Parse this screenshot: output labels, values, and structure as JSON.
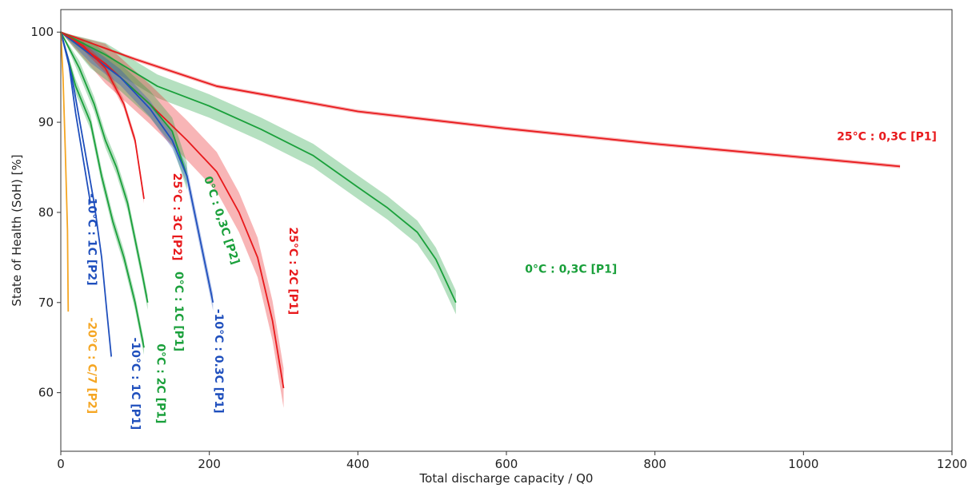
{
  "chart_data": {
    "type": "line",
    "title": "",
    "xlabel": "Total discharge capacity / Q0",
    "ylabel": "State of Health (SoH) [%]",
    "xlim": [
      0,
      1200
    ],
    "ylim": [
      53.5,
      102.5
    ],
    "xticks": [
      0,
      200,
      400,
      600,
      800,
      1000,
      1200
    ],
    "yticks": [
      60,
      70,
      80,
      90,
      100
    ],
    "grid": false,
    "legend": "none",
    "series": [
      {
        "name": "25°C : 0,3C [P1]",
        "color": "#e8191c",
        "x": [
          0,
          100,
          210,
          400,
          600,
          800,
          1000,
          1130
        ],
        "y": [
          100,
          97,
          94,
          91.2,
          89.3,
          87.6,
          86.1,
          85.1
        ],
        "band": 0.2
      },
      {
        "name": "0°C : 0,3C [P1]",
        "color": "#1aa03b",
        "x": [
          0,
          60,
          130,
          200,
          270,
          340,
          400,
          440,
          480,
          505,
          532
        ],
        "y": [
          100,
          97.5,
          94,
          91.8,
          89.2,
          86.3,
          82.8,
          80.5,
          77.8,
          74.8,
          70
        ],
        "band": 1.3
      },
      {
        "name": "25°C : 2C [P1]",
        "color": "#e8191c",
        "x": [
          0,
          60,
          120,
          170,
          210,
          240,
          265,
          285,
          300
        ],
        "y": [
          100,
          96.5,
          92,
          88,
          84.5,
          80,
          75,
          68,
          60.5
        ],
        "band": 2.2
      },
      {
        "name": "0°C : 0,3C [P2]",
        "color": "#1aa03b",
        "x": [
          0,
          40,
          80,
          120,
          150,
          170
        ],
        "y": [
          100,
          97.5,
          95,
          92,
          89,
          84
        ],
        "band": 1.5
      },
      {
        "name": "-10°C : 0.3C [P1]",
        "color": "#1f4fbd",
        "x": [
          0,
          40,
          80,
          120,
          150,
          170,
          185,
          205
        ],
        "y": [
          100,
          97.5,
          95,
          91.5,
          88,
          84,
          78,
          70
        ],
        "band": 0.9
      },
      {
        "name": "25°C : 3C [P2]",
        "color": "#e8191c",
        "x": [
          0,
          30,
          60,
          85,
          100,
          112
        ],
        "y": [
          100,
          98.5,
          96,
          92,
          88,
          81.5
        ],
        "band": 0.5
      },
      {
        "name": "0°C : 1C [P1]",
        "color": "#1aa03b",
        "x": [
          0,
          25,
          45,
          60,
          75,
          90,
          100,
          110,
          117
        ],
        "y": [
          100,
          96,
          92,
          88,
          85,
          81,
          77,
          73,
          70
        ],
        "band": 0.8
      },
      {
        "name": "0°C : 2C [P1]",
        "color": "#1aa03b",
        "x": [
          0,
          20,
          40,
          55,
          70,
          85,
          100,
          112
        ],
        "y": [
          100,
          94,
          90,
          84,
          79,
          75,
          70,
          65
        ],
        "band": 0.8
      },
      {
        "name": "-10°C : 1C [P2]",
        "color": "#1f4fbd",
        "x": [
          0,
          10,
          20,
          30,
          40
        ],
        "y": [
          100,
          97,
          91,
          86,
          81
        ],
        "band": 0.3
      },
      {
        "name": "-10°C : 1C [P1]",
        "color": "#1f4fbd",
        "x": [
          0,
          15,
          30,
          45,
          55,
          62,
          68
        ],
        "y": [
          100,
          95,
          88,
          81,
          75,
          69,
          64
        ],
        "band": 0.4
      },
      {
        "name": "-20°C : C/7 [P2]",
        "color": "#f5a623",
        "x": [
          0,
          3,
          6,
          9,
          10
        ],
        "y": [
          100,
          95,
          87,
          78,
          69
        ],
        "band": 0.5
      }
    ],
    "annotations": [
      {
        "text": "25°C : 0,3C [P1]",
        "series": 0,
        "rotation": 0,
        "x": 1045,
        "y": 88.0
      },
      {
        "text": "0°C : 0,3C [P1]",
        "series": 1,
        "rotation": 0,
        "x": 625,
        "y": 73.3
      },
      {
        "text": "25°C : 2C [P1]",
        "series": 2,
        "rotation": 90,
        "x": 308,
        "y": 73.5
      },
      {
        "text": "0°C : 0,3C [P2]",
        "series": 3,
        "rotation": 72,
        "x": 212,
        "y": 79.0
      },
      {
        "text": "-10°C : 0.3C [P1]",
        "series": 4,
        "rotation": 90,
        "x": 208,
        "y": 63.5
      },
      {
        "text": "25°C : 3C [P2]",
        "series": 5,
        "rotation": 90,
        "x": 152,
        "y": 79.5
      },
      {
        "text": "0°C : 1C [P1]",
        "series": 6,
        "rotation": 90,
        "x": 154,
        "y": 69.0
      },
      {
        "text": "0°C : 2C [P1]",
        "series": 7,
        "rotation": 90,
        "x": 130,
        "y": 61.0
      },
      {
        "text": "-10°C : 1C [P2]",
        "series": 8,
        "rotation": 90,
        "x": 37,
        "y": 77.0
      },
      {
        "text": "-10°C : 1C [P1]",
        "series": 9,
        "rotation": 90,
        "x": 96,
        "y": 61.0
      },
      {
        "text": "-20°C : C/7 [P2]",
        "series": 10,
        "rotation": 90,
        "x": 37,
        "y": 63.0
      }
    ]
  }
}
